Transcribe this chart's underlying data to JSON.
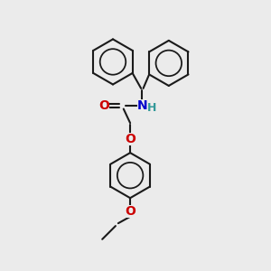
{
  "bg_color": "#ebebeb",
  "bond_color": "#1a1a1a",
  "O_color": "#cc0000",
  "N_color": "#0000cc",
  "H_color": "#339999",
  "lw": 1.5,
  "figsize": [
    3.0,
    3.0
  ],
  "dpi": 100,
  "xlim": [
    0,
    10
  ],
  "ylim": [
    0,
    10
  ]
}
